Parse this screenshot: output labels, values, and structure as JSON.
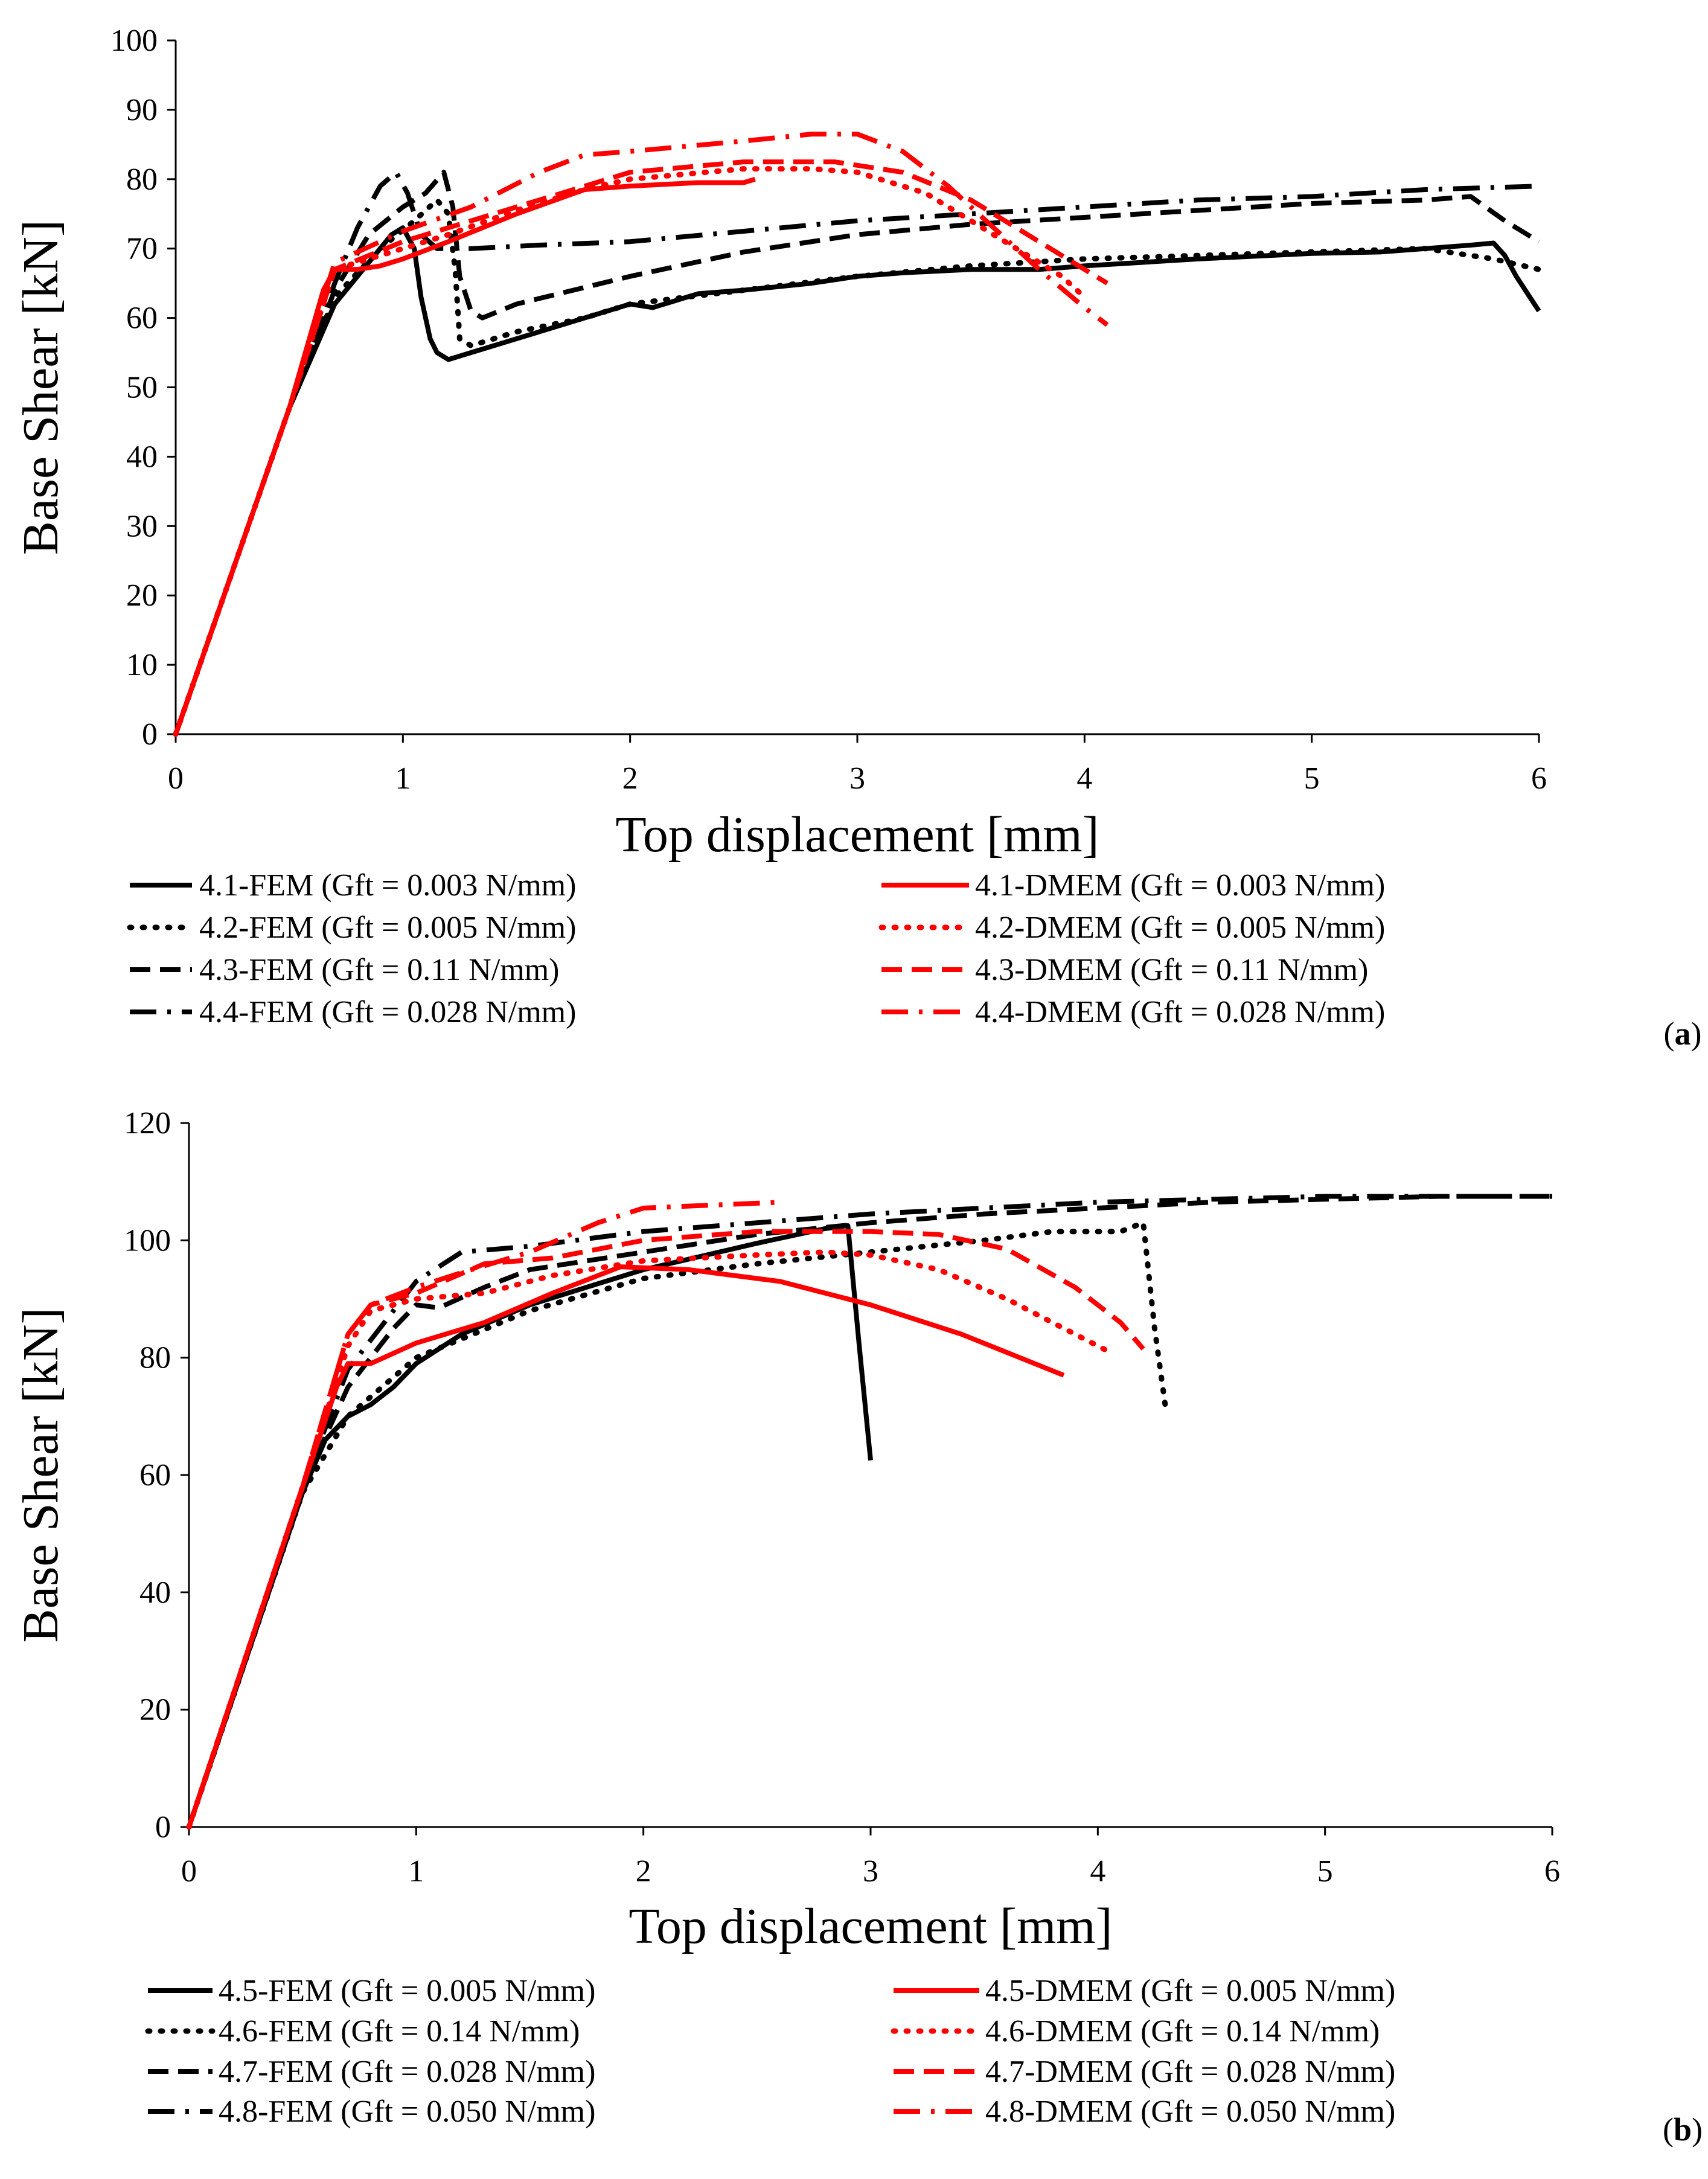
{
  "colors": {
    "fem": "#000000",
    "dmem": "#ff0000",
    "axis": "#000000"
  },
  "chart_data": [
    {
      "id": "a",
      "type": "line",
      "panel_label": "a",
      "xlabel": "Top displacement  [mm]",
      "ylabel": "Base Shear  [kN]",
      "xlim": [
        0,
        6
      ],
      "ylim": [
        0,
        100
      ],
      "xticks": [
        0,
        1,
        2,
        3,
        4,
        5,
        6
      ],
      "yticks": [
        0,
        10,
        20,
        30,
        40,
        50,
        60,
        70,
        80,
        90,
        100
      ],
      "grid": false,
      "legend_position": "bottom",
      "series": [
        {
          "name": "4.1-FEM (Gft = 0.003 N/mm)",
          "color": "#000000",
          "style": "solid",
          "x": [
            0,
            0.5,
            0.7,
            0.85,
            0.95,
            1.0,
            1.05,
            1.08,
            1.12,
            1.15,
            1.2,
            1.3,
            1.5,
            1.8,
            2.0,
            2.1,
            2.2,
            2.3,
            2.5,
            2.8,
            3.0,
            3.2,
            3.5,
            3.8,
            4.0,
            4.5,
            5.0,
            5.3,
            5.5,
            5.7,
            5.8,
            5.85,
            5.9,
            6.0
          ],
          "y": [
            0,
            47,
            62,
            68,
            72,
            73,
            70,
            63,
            57,
            55,
            54,
            55,
            57,
            60,
            62,
            61.5,
            62.5,
            63.5,
            64,
            65,
            66,
            66.5,
            67,
            67,
            67.5,
            68.5,
            69.3,
            69.5,
            70,
            70.5,
            70.8,
            69,
            66,
            61
          ]
        },
        {
          "name": "4.2-FEM (Gft = 0.005 N/mm)",
          "color": "#000000",
          "style": "dotted",
          "x": [
            0,
            0.5,
            0.7,
            0.9,
            1.05,
            1.15,
            1.2,
            1.23,
            1.25,
            1.3,
            1.5,
            1.8,
            2.0,
            2.5,
            3.0,
            3.5,
            4.0,
            4.5,
            5.0,
            5.5,
            5.8,
            6.0
          ],
          "y": [
            0,
            47,
            63,
            70,
            74,
            77,
            75,
            67,
            57,
            56,
            58,
            60,
            62,
            64,
            66,
            67.5,
            68.5,
            69,
            69.5,
            70,
            68.5,
            67
          ]
        },
        {
          "name": "4.3-FEM (Gft = 0.11 N/mm)",
          "color": "#000000",
          "style": "dashed",
          "x": [
            0,
            0.5,
            0.7,
            0.85,
            1.0,
            1.1,
            1.18,
            1.22,
            1.25,
            1.3,
            1.35,
            1.5,
            2.0,
            2.5,
            3.0,
            3.5,
            4.0,
            4.5,
            5.0,
            5.5,
            5.7,
            5.85,
            6.0
          ],
          "y": [
            0,
            47,
            64,
            72,
            76,
            78,
            81,
            76,
            66,
            61,
            60,
            62,
            66,
            69.5,
            72,
            73.5,
            74.5,
            75.5,
            76.5,
            77,
            77.5,
            74,
            71
          ]
        },
        {
          "name": "4.4-FEM (Gft = 0.028 N/mm)",
          "color": "#000000",
          "style": "dashdot",
          "x": [
            0,
            0.5,
            0.7,
            0.8,
            0.9,
            0.97,
            1.02,
            1.08,
            1.15,
            1.3,
            1.6,
            2.0,
            2.5,
            3.0,
            3.5,
            4.0,
            4.5,
            5.0,
            5.5,
            6.0
          ],
          "y": [
            0,
            47,
            65,
            73,
            79,
            81,
            78,
            72,
            70,
            70,
            70.5,
            71,
            72.5,
            74,
            75,
            76,
            77,
            77.5,
            78.5,
            79
          ]
        },
        {
          "name": "4.1-DMEM (Gft = 0.003 N/mm)",
          "color": "#ff0000",
          "style": "solid",
          "x": [
            0,
            0.5,
            0.65,
            0.7,
            0.8,
            0.9,
            1.0,
            1.2,
            1.5,
            1.8,
            2.0,
            2.3,
            2.5,
            2.55
          ],
          "y": [
            0,
            47,
            64,
            67,
            67,
            67.5,
            68.5,
            71,
            75,
            78.5,
            79,
            79.5,
            79.5,
            80
          ]
        },
        {
          "name": "4.2-DMEM (Gft = 0.005 N/mm)",
          "color": "#ff0000",
          "style": "dotted",
          "x": [
            0,
            0.5,
            0.7,
            1.0,
            1.2,
            1.5,
            1.8,
            2.0,
            2.5,
            2.8,
            3.0,
            3.3,
            3.5,
            3.7,
            3.9,
            4.0
          ],
          "y": [
            0,
            47,
            67,
            70,
            72,
            75.5,
            78.5,
            80,
            81.5,
            81.5,
            81,
            78,
            74,
            70,
            66,
            63
          ]
        },
        {
          "name": "4.3-DMEM (Gft = 0.11 N/mm)",
          "color": "#ff0000",
          "style": "dashed",
          "x": [
            0,
            0.5,
            0.7,
            1.0,
            1.2,
            1.5,
            1.8,
            2.0,
            2.5,
            2.9,
            3.2,
            3.5,
            3.7,
            3.9,
            4.0,
            4.1
          ],
          "y": [
            0,
            47,
            67,
            71,
            73,
            76,
            79,
            81,
            82.5,
            82.5,
            81,
            77,
            73,
            69,
            67,
            65
          ]
        },
        {
          "name": "4.4-DMEM (Gft = 0.028 N/mm)",
          "color": "#ff0000",
          "style": "dashdot",
          "x": [
            0,
            0.5,
            0.7,
            1.0,
            1.3,
            1.6,
            1.8,
            2.0,
            2.5,
            2.8,
            3.0,
            3.2,
            3.4,
            3.6,
            3.8,
            4.0,
            4.1
          ],
          "y": [
            0,
            47,
            68,
            72.5,
            76,
            81,
            83.5,
            84,
            85.5,
            86.5,
            86.5,
            84,
            79,
            73,
            67,
            61.5,
            59
          ]
        }
      ],
      "legend": {
        "left": [
          "4.1-FEM (Gft = 0.003 N/mm)",
          "4.2-FEM (Gft = 0.005 N/mm)",
          "4.3-FEM (Gft = 0.11 N/mm)",
          "4.4-FEM (Gft = 0.028 N/mm)"
        ],
        "right": [
          "4.1-DMEM (Gft = 0.003 N/mm)",
          "4.2-DMEM (Gft = 0.005 N/mm)",
          "4.3-DMEM (Gft = 0.11 N/mm)",
          "4.4-DMEM (Gft = 0.028 N/mm)"
        ]
      }
    },
    {
      "id": "b",
      "type": "line",
      "panel_label": "b",
      "xlabel": "Top displacement  [mm]",
      "ylabel": "Base Shear  [kN]",
      "xlim": [
        0,
        6
      ],
      "ylim": [
        0,
        120
      ],
      "xticks": [
        0,
        1,
        2,
        3,
        4,
        5,
        6
      ],
      "yticks": [
        0,
        20,
        40,
        60,
        80,
        100,
        120
      ],
      "grid": false,
      "legend_position": "bottom",
      "series": [
        {
          "name": "4.5-FEM (Gft = 0.005 N/mm)",
          "color": "#000000",
          "style": "solid",
          "x": [
            0,
            0.5,
            0.6,
            0.7,
            0.8,
            0.9,
            1.0,
            1.2,
            1.5,
            2.0,
            2.5,
            2.8,
            2.9,
            2.95,
            3.0
          ],
          "y": [
            0,
            57,
            66,
            70,
            72,
            75,
            79,
            84,
            89,
            95,
            99.5,
            102,
            102.5,
            82,
            62.5
          ]
        },
        {
          "name": "4.6-FEM (Gft = 0.14 N/mm)",
          "color": "#000000",
          "style": "dotted",
          "x": [
            0,
            0.5,
            0.7,
            1.0,
            1.5,
            2.0,
            2.5,
            3.0,
            3.5,
            3.8,
            4.0,
            4.1,
            4.2,
            4.25,
            4.3
          ],
          "y": [
            0,
            57,
            70,
            80,
            88,
            93.5,
            96,
            98,
            100,
            101.5,
            101.5,
            101.5,
            103,
            85,
            71
          ]
        },
        {
          "name": "4.7-FEM (Gft = 0.028 N/mm)",
          "color": "#000000",
          "style": "dashed",
          "x": [
            0,
            0.5,
            0.7,
            0.9,
            1.0,
            1.1,
            1.3,
            1.5,
            2.0,
            2.5,
            3.0,
            3.5,
            4.0,
            4.5,
            5.0,
            5.5,
            6.0
          ],
          "y": [
            0,
            58,
            75,
            85,
            89,
            88.5,
            92,
            95,
            98,
            101,
            103,
            104.5,
            105.5,
            106.5,
            107,
            107.5,
            107.5
          ]
        },
        {
          "name": "4.8-FEM (Gft = 0.050 N/mm)",
          "color": "#000000",
          "style": "dashdot",
          "x": [
            0,
            0.5,
            0.7,
            0.9,
            1.0,
            1.2,
            1.5,
            2.0,
            2.5,
            3.0,
            3.5,
            4.0,
            4.5,
            5.0,
            5.5,
            6.0
          ],
          "y": [
            0,
            58,
            78,
            88,
            93,
            98,
            99,
            101.5,
            103,
            104.5,
            105.5,
            106.5,
            107,
            107.5,
            107.5,
            107.5
          ]
        },
        {
          "name": "4.5-DMEM (Gft = 0.005 N/mm)",
          "color": "#ff0000",
          "style": "solid",
          "x": [
            0,
            0.5,
            0.65,
            0.7,
            0.8,
            1.0,
            1.3,
            1.6,
            1.9,
            2.2,
            2.6,
            3.0,
            3.4,
            3.85
          ],
          "y": [
            0,
            58,
            75,
            79,
            79,
            82.5,
            86,
            91,
            95.5,
            95,
            93,
            89,
            84,
            77
          ]
        },
        {
          "name": "4.6-DMEM (Gft = 0.14 N/mm)",
          "color": "#ff0000",
          "style": "dotted",
          "x": [
            0,
            0.5,
            0.7,
            0.8,
            1.0,
            1.3,
            1.6,
            2.0,
            2.5,
            2.8,
            3.0,
            3.3,
            3.6,
            3.9,
            4.05
          ],
          "y": [
            0,
            58,
            82,
            88,
            90,
            91,
            94,
            96.5,
            97.5,
            98,
            97.5,
            95,
            90,
            84,
            81
          ]
        },
        {
          "name": "4.7-DMEM (Gft = 0.028 N/mm)",
          "color": "#ff0000",
          "style": "dashed",
          "x": [
            0,
            0.5,
            0.7,
            0.8,
            1.0,
            1.3,
            1.6,
            2.0,
            2.5,
            3.0,
            3.3,
            3.6,
            3.9,
            4.1,
            4.2
          ],
          "y": [
            0,
            58,
            84,
            89,
            91,
            96,
            97,
            100,
            101.5,
            101.5,
            101,
            98.5,
            92,
            86,
            81.5
          ]
        },
        {
          "name": "4.8-DMEM (Gft = 0.050 N/mm)",
          "color": "#ff0000",
          "style": "dashdot",
          "x": [
            0,
            0.5,
            0.7,
            0.8,
            1.0,
            1.2,
            1.5,
            1.8,
            2.0,
            2.3,
            2.6
          ],
          "y": [
            0,
            58,
            84,
            89,
            92,
            94.5,
            98,
            103,
            105.5,
            106,
            106.5
          ]
        }
      ],
      "legend": {
        "left": [
          "4.5-FEM (Gft = 0.005 N/mm)",
          "4.6-FEM (Gft = 0.14 N/mm)",
          "4.7-FEM (Gft = 0.028 N/mm)",
          "4.8-FEM (Gft = 0.050 N/mm)"
        ],
        "right": [
          "4.5-DMEM (Gft = 0.005 N/mm)",
          "4.6-DMEM (Gft = 0.14 N/mm)",
          "4.7-DMEM (Gft = 0.028 N/mm)",
          "4.8-DMEM (Gft = 0.050 N/mm)"
        ]
      }
    }
  ]
}
